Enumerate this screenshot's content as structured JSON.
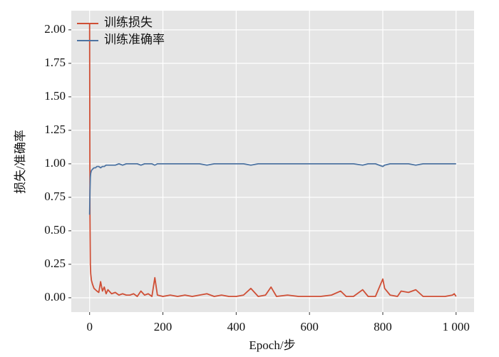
{
  "chart_data": {
    "type": "line",
    "x_label": "Epoch/步",
    "y_label": "损失/准确率",
    "x": [
      0,
      1,
      2,
      3,
      5,
      8,
      12,
      16,
      20,
      25,
      30,
      35,
      40,
      45,
      50,
      60,
      70,
      80,
      90,
      100,
      110,
      120,
      130,
      140,
      150,
      160,
      170,
      178,
      185,
      200,
      220,
      240,
      260,
      280,
      300,
      320,
      340,
      360,
      380,
      400,
      420,
      440,
      460,
      480,
      495,
      510,
      540,
      570,
      600,
      630,
      660,
      685,
      700,
      720,
      745,
      760,
      780,
      800,
      805,
      820,
      840,
      850,
      870,
      890,
      910,
      940,
      970,
      990,
      995,
      1000
    ],
    "series": [
      {
        "name": "训练损失",
        "color": "#cf4f36",
        "values": [
          2.05,
          0.6,
          0.25,
          0.18,
          0.13,
          0.1,
          0.07,
          0.06,
          0.05,
          0.04,
          0.12,
          0.05,
          0.08,
          0.03,
          0.06,
          0.03,
          0.04,
          0.02,
          0.03,
          0.02,
          0.02,
          0.03,
          0.01,
          0.05,
          0.02,
          0.03,
          0.01,
          0.15,
          0.02,
          0.01,
          0.02,
          0.01,
          0.02,
          0.01,
          0.02,
          0.03,
          0.01,
          0.02,
          0.01,
          0.01,
          0.02,
          0.07,
          0.01,
          0.02,
          0.08,
          0.01,
          0.02,
          0.01,
          0.01,
          0.01,
          0.02,
          0.05,
          0.01,
          0.01,
          0.06,
          0.01,
          0.01,
          0.14,
          0.07,
          0.02,
          0.01,
          0.05,
          0.04,
          0.06,
          0.01,
          0.01,
          0.01,
          0.02,
          0.03,
          0.01
        ]
      },
      {
        "name": "训练准确率",
        "color": "#4e74a2",
        "values": [
          0.62,
          0.8,
          0.9,
          0.93,
          0.95,
          0.96,
          0.97,
          0.97,
          0.98,
          0.98,
          0.97,
          0.98,
          0.98,
          0.99,
          0.99,
          0.99,
          0.99,
          1.0,
          0.99,
          1.0,
          1.0,
          1.0,
          1.0,
          0.99,
          1.0,
          1.0,
          1.0,
          0.99,
          1.0,
          1.0,
          1.0,
          1.0,
          1.0,
          1.0,
          1.0,
          0.99,
          1.0,
          1.0,
          1.0,
          1.0,
          1.0,
          0.99,
          1.0,
          1.0,
          1.0,
          1.0,
          1.0,
          1.0,
          1.0,
          1.0,
          1.0,
          1.0,
          1.0,
          1.0,
          0.99,
          1.0,
          1.0,
          0.98,
          0.99,
          1.0,
          1.0,
          1.0,
          1.0,
          0.99,
          1.0,
          1.0,
          1.0,
          1.0,
          1.0,
          1.0
        ]
      }
    ],
    "xlim": [
      -50,
      1049
    ],
    "ylim": [
      -0.107,
      2.143
    ],
    "xticks": [
      0,
      200,
      400,
      600,
      800,
      {
        "value": 1000,
        "label": "1 000"
      }
    ],
    "yticks": [
      {
        "value": 0,
        "label": "0.00"
      },
      {
        "value": 0.25,
        "label": "0.25"
      },
      {
        "value": 0.5,
        "label": "0.50"
      },
      {
        "value": 0.75,
        "label": "0.75"
      },
      {
        "value": 1,
        "label": "1.00"
      },
      {
        "value": 1.25,
        "label": "1.25"
      },
      {
        "value": 1.5,
        "label": "1.50"
      },
      {
        "value": 1.75,
        "label": "1.75"
      },
      {
        "value": 2,
        "label": "2.00"
      }
    ],
    "grid": true,
    "legend": "upper-left"
  }
}
